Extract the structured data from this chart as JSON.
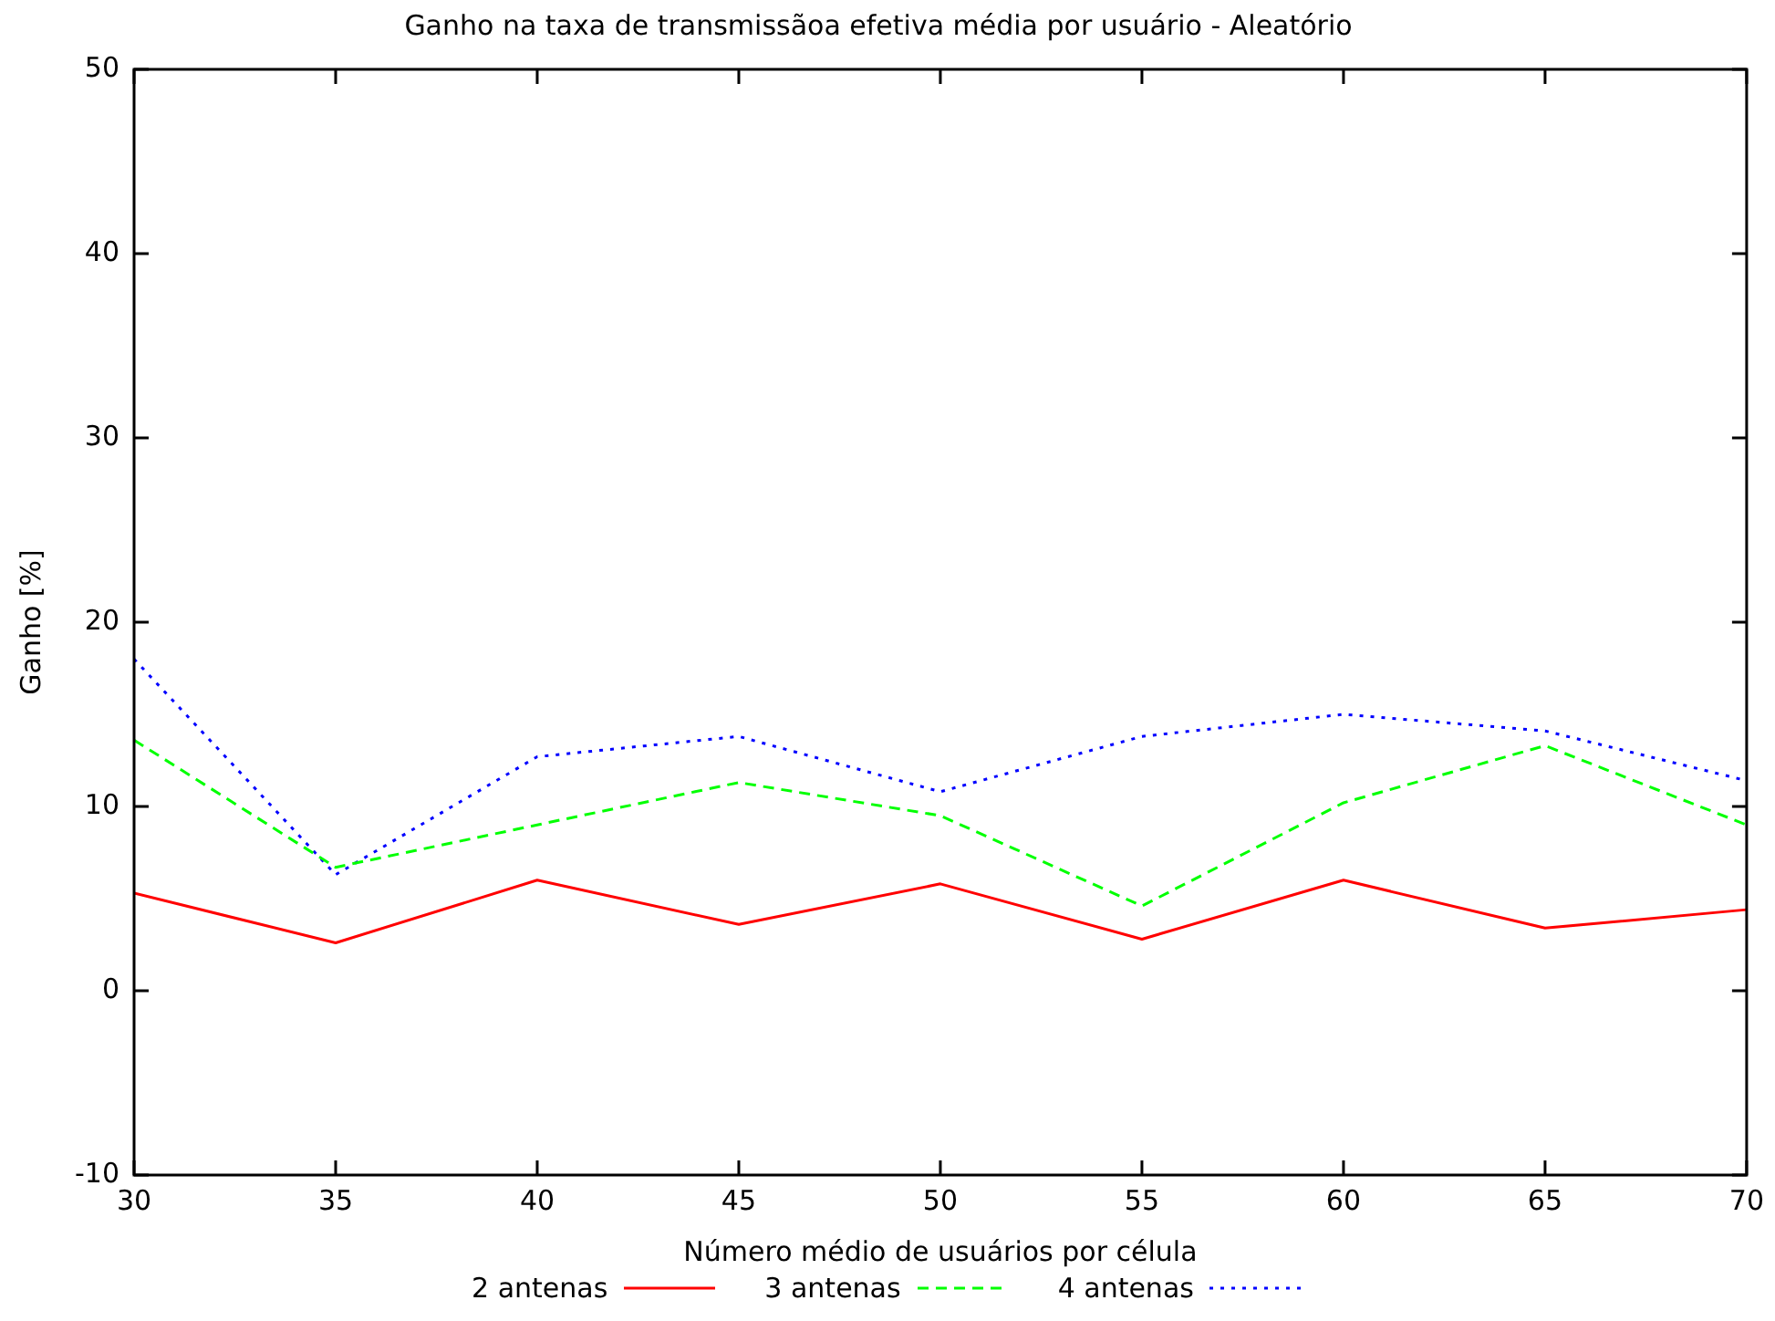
{
  "chart_data": {
    "type": "line",
    "title": "Ganho na taxa de transmissãoa efetiva média por usuário - Aleatório",
    "xlabel": "Número médio de usuários por célula",
    "ylabel": "Ganho [%]",
    "x": [
      30,
      35,
      40,
      45,
      50,
      55,
      60,
      65,
      70
    ],
    "xlim": [
      30,
      70
    ],
    "xticks": [
      30,
      35,
      40,
      45,
      50,
      55,
      60,
      65,
      70
    ],
    "ylim": [
      -10,
      50
    ],
    "yticks": [
      -10,
      0,
      10,
      20,
      30,
      40,
      50
    ],
    "grid": false,
    "legend": "bottom",
    "marker": "none",
    "series": [
      {
        "name": "2 antenas",
        "color": "#ff0000",
        "line_style": "solid",
        "values": [
          5.3,
          2.6,
          6.0,
          3.6,
          5.8,
          2.8,
          6.0,
          3.4,
          4.4
        ]
      },
      {
        "name": "3 antenas",
        "color": "#00ff00",
        "line_style": "dashed",
        "values": [
          13.6,
          6.7,
          9.0,
          11.3,
          9.5,
          4.6,
          10.2,
          13.3,
          9.0
        ]
      },
      {
        "name": "4 antenas",
        "color": "#0000ff",
        "line_style": "dotted",
        "values": [
          18.0,
          6.3,
          12.7,
          13.8,
          10.8,
          13.8,
          15.0,
          14.1,
          11.4
        ]
      }
    ]
  }
}
